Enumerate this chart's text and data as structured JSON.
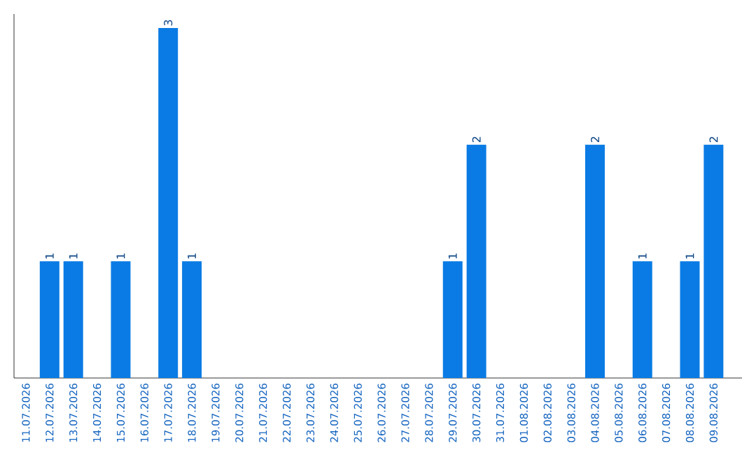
{
  "chart_data": {
    "type": "bar",
    "categories": [
      "11.07.2026",
      "12.07.2026",
      "13.07.2026",
      "14.07.2026",
      "15.07.2026",
      "16.07.2026",
      "17.07.2026",
      "18.07.2026",
      "19.07.2026",
      "20.07.2026",
      "21.07.2026",
      "22.07.2026",
      "23.07.2026",
      "24.07.2026",
      "25.07.2026",
      "26.07.2026",
      "27.07.2026",
      "28.07.2026",
      "29.07.2026",
      "30.07.2026",
      "31.07.2026",
      "01.08.2026",
      "02.08.2026",
      "03.08.2026",
      "04.08.2026",
      "05.08.2026",
      "06.08.2026",
      "07.08.2026",
      "08.08.2026",
      "09.08.2026"
    ],
    "values": [
      0,
      1,
      1,
      0,
      1,
      0,
      3,
      1,
      0,
      0,
      0,
      0,
      0,
      0,
      0,
      0,
      0,
      0,
      1,
      2,
      0,
      0,
      0,
      0,
      2,
      0,
      1,
      0,
      1,
      2
    ],
    "value_labels": [
      null,
      "1",
      "1",
      null,
      "1",
      null,
      "3",
      "1",
      null,
      null,
      null,
      null,
      null,
      null,
      null,
      null,
      null,
      null,
      "1",
      "2",
      null,
      null,
      null,
      null,
      "2",
      null,
      "1",
      null,
      "1",
      "2"
    ],
    "color": "#0a7be4",
    "ylim": [
      0,
      3.12
    ],
    "tick_labels": "x",
    "grid": false
  }
}
